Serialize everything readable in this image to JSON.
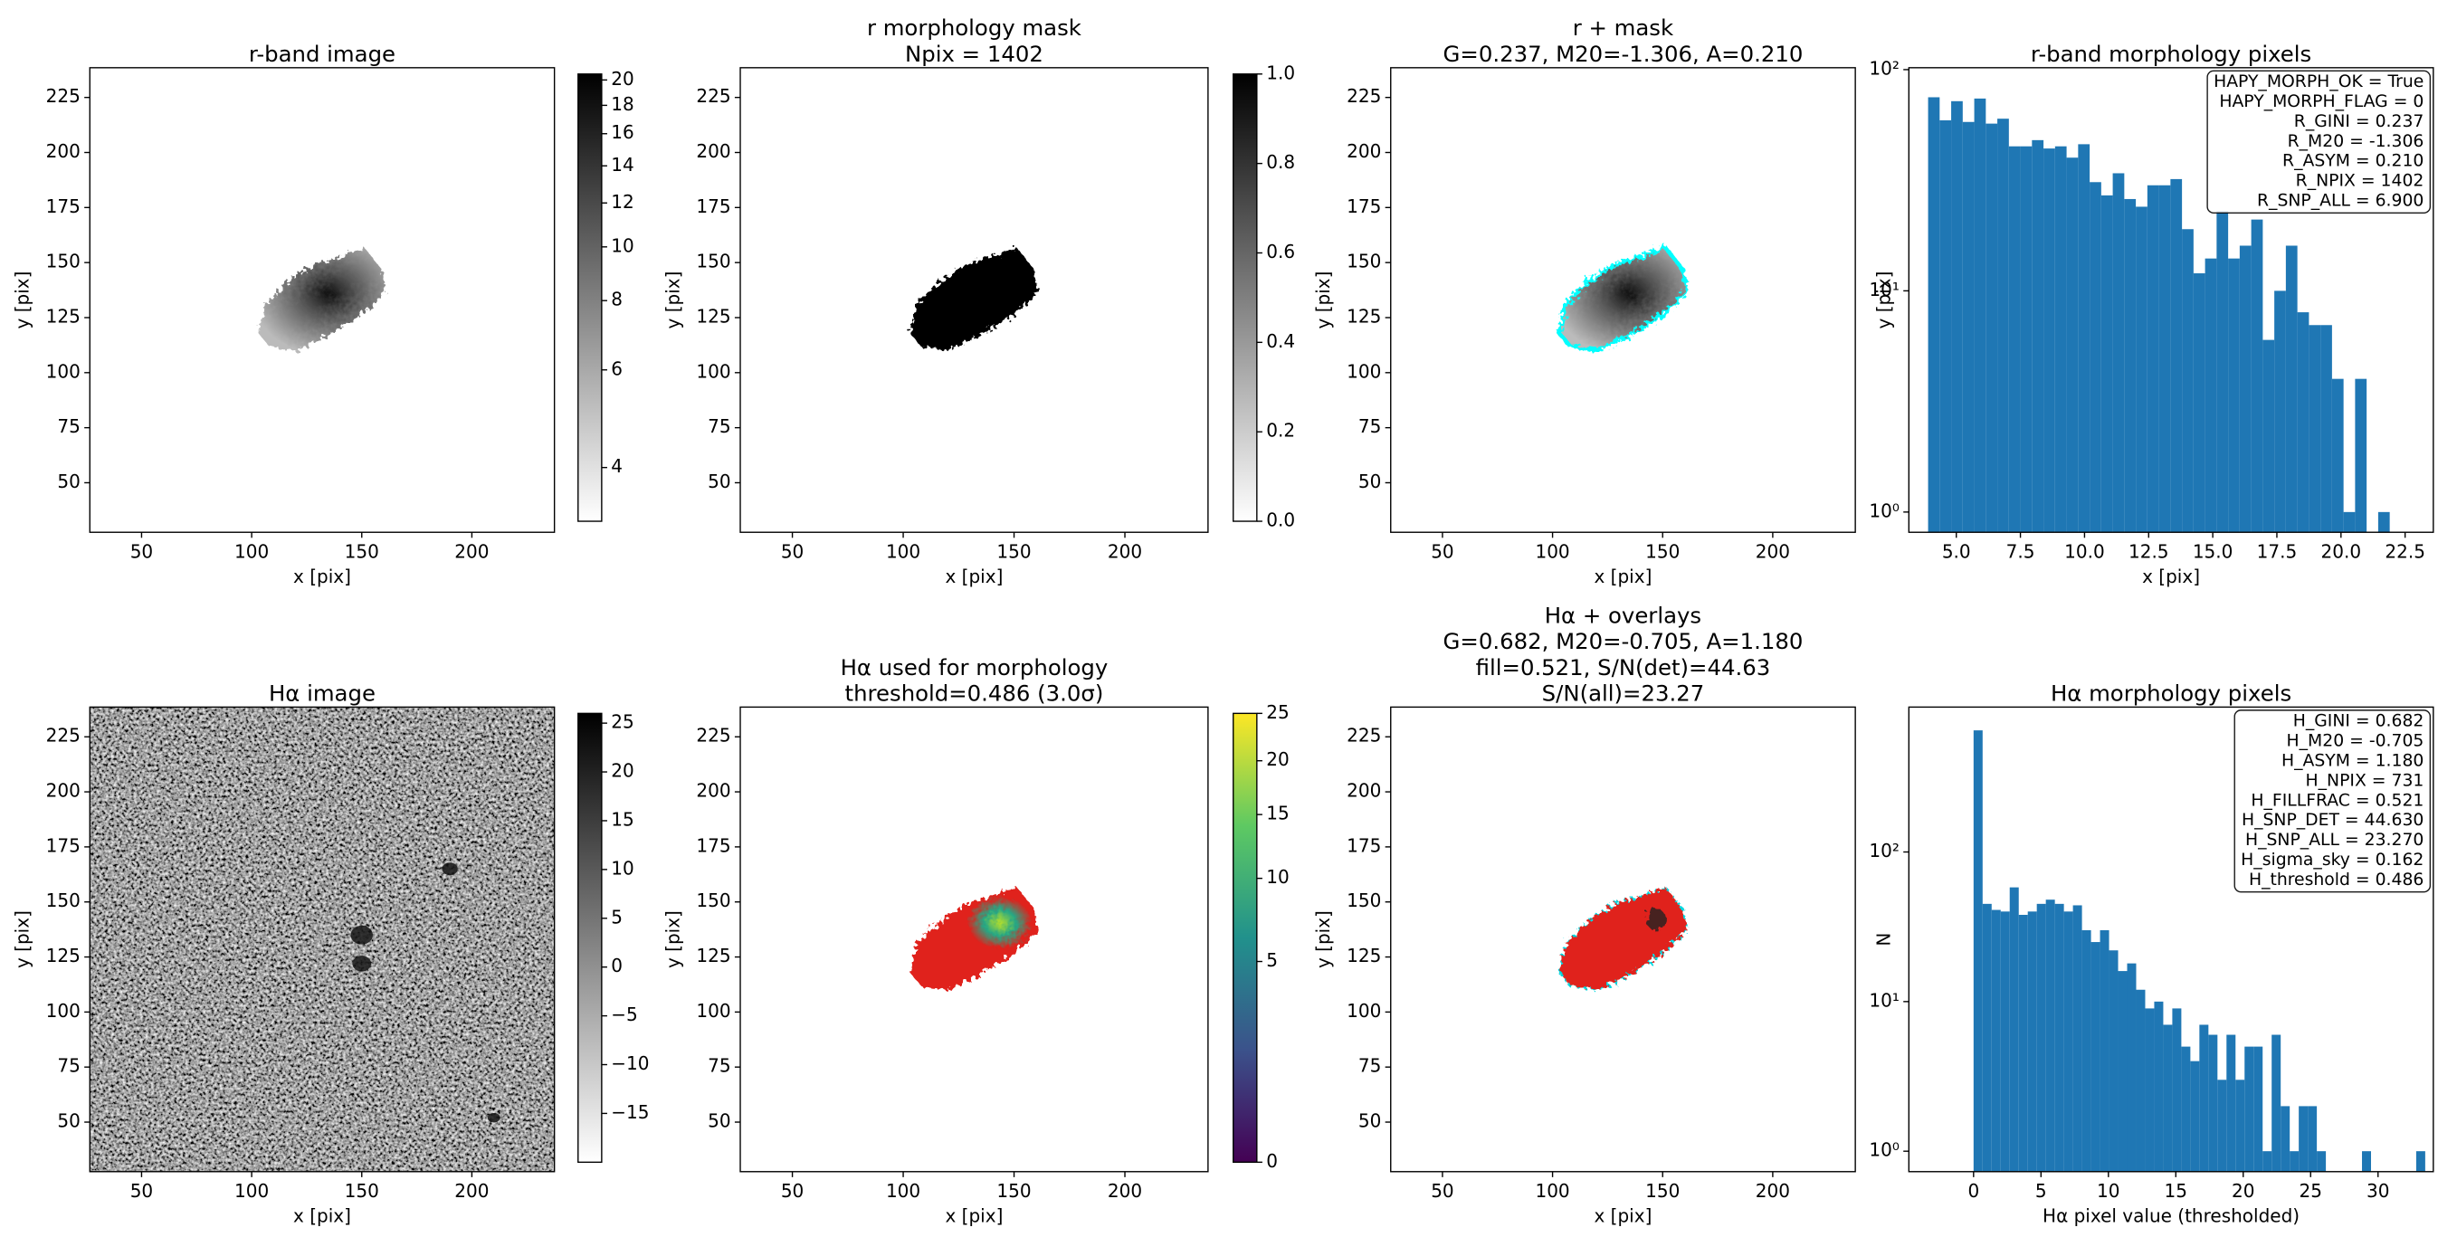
{
  "chart_data": [
    {
      "type": "image",
      "title": [
        "r-band image"
      ],
      "xlabel": "x [pix]",
      "ylabel": "y [pix]",
      "xlim": [
        26.5,
        237.5
      ],
      "ylim": [
        27.5,
        238.5
      ],
      "xticks": [
        50,
        100,
        150,
        200
      ],
      "yticks": [
        50,
        75,
        100,
        125,
        150,
        175,
        200,
        225
      ],
      "cmap": "gray_r",
      "colorbar": {
        "scale": "log",
        "clim": [
          3.2,
          20.5
        ],
        "ticks": [
          4,
          6,
          8,
          10,
          12,
          14,
          16,
          18,
          20
        ]
      }
    },
    {
      "type": "image",
      "title": [
        "r morphology mask",
        "Npix = 1402"
      ],
      "xlabel": "x [pix]",
      "ylabel": "y [pix]",
      "xlim": [
        26.5,
        237.5
      ],
      "ylim": [
        27.5,
        238.5
      ],
      "xticks": [
        50,
        100,
        150,
        200
      ],
      "yticks": [
        50,
        75,
        100,
        125,
        150,
        175,
        200,
        225
      ],
      "cmap": "gray_r",
      "colorbar": {
        "scale": "linear",
        "clim": [
          0,
          1
        ],
        "ticks": [
          {
            "value": 0,
            "label": "0.0"
          },
          0.2,
          0.4,
          0.6,
          0.8,
          {
            "value": 1,
            "label": "1.0"
          }
        ]
      }
    },
    {
      "type": "image",
      "title": [
        "r + mask",
        "G=0.237, M20=-1.306, A=0.210"
      ],
      "xlabel": "x [pix]",
      "ylabel": "y [pix]",
      "xlim": [
        26.5,
        237.5
      ],
      "ylim": [
        27.5,
        238.5
      ],
      "xticks": [
        50,
        100,
        150,
        200
      ],
      "yticks": [
        50,
        75,
        100,
        125,
        150,
        175,
        200,
        225
      ],
      "cmap": "gray_r"
    },
    {
      "type": "histogram",
      "title": [
        "r-band morphology pixels"
      ],
      "xlabel": "x [pix]",
      "ylabel": "y [pix]",
      "color": "#1f77b4",
      "log": true,
      "xlim": [
        3.15,
        23.6
      ],
      "ylim": [
        0.81,
        102
      ],
      "xticks": [
        {
          "value": 5,
          "label": "5.0"
        },
        7.5,
        {
          "value": 10,
          "label": "10.0"
        },
        12.5,
        {
          "value": 15,
          "label": "15.0"
        },
        17.5,
        {
          "value": 20,
          "label": "20.0"
        },
        22.5
      ],
      "yticks": [
        {
          "value": 1,
          "label": "10⁰"
        },
        {
          "value": 10,
          "label": "10¹"
        },
        {
          "value": 100,
          "label": "10²"
        }
      ],
      "bins": [
        3.9,
        4.35,
        4.8,
        5.25,
        5.7,
        6.15,
        6.6,
        7.05,
        7.5,
        7.95,
        8.4,
        8.85,
        9.3,
        9.75,
        10.2,
        10.65,
        11.1,
        11.55,
        12.0,
        12.45,
        12.9,
        13.35,
        13.8,
        14.25,
        14.7,
        15.15,
        15.6,
        16.05,
        16.5,
        16.95,
        17.4,
        17.85,
        18.3,
        18.75,
        19.2,
        19.65,
        20.1,
        20.55,
        21.0,
        21.45,
        21.9
      ],
      "values": [
        75,
        59,
        72,
        58,
        74,
        57,
        60,
        45,
        45,
        48,
        44,
        45,
        40,
        46,
        31,
        27,
        34,
        26,
        24,
        30,
        30,
        32,
        19,
        12,
        14,
        23,
        14,
        16,
        21,
        6,
        10,
        16,
        8,
        7,
        7,
        4,
        1,
        4,
        0,
        1
      ],
      "annotation": [
        "HAPY_MORPH_OK = True",
        "HAPY_MORPH_FLAG = 0",
        "R_GINI = 0.237",
        "R_M20 = -1.306",
        "R_ASYM = 0.210",
        "R_NPIX = 1402",
        "R_SNP_ALL = 6.900"
      ]
    },
    {
      "type": "image",
      "title": [
        "Hα image"
      ],
      "xlabel": "x [pix]",
      "ylabel": "y [pix]",
      "xlim": [
        26.5,
        237.5
      ],
      "ylim": [
        27.5,
        238.5
      ],
      "xticks": [
        50,
        100,
        150,
        200
      ],
      "yticks": [
        50,
        75,
        100,
        125,
        150,
        175,
        200,
        225
      ],
      "cmap": "gray_r",
      "colorbar": {
        "scale": "linear",
        "clim": [
          -20,
          26
        ],
        "ticks": [
          25,
          20,
          15,
          10,
          5,
          0,
          {
            "value": -5,
            "label": "−5"
          },
          {
            "value": -10,
            "label": "−10"
          },
          {
            "value": -15,
            "label": "−15"
          }
        ]
      }
    },
    {
      "type": "image",
      "title": [
        "Hα used for morphology",
        "threshold=0.486 (3.0σ)"
      ],
      "xlabel": "x [pix]",
      "ylabel": "y [pix]",
      "xlim": [
        26.5,
        237.5
      ],
      "ylim": [
        27.5,
        238.5
      ],
      "xticks": [
        50,
        100,
        150,
        200
      ],
      "yticks": [
        50,
        75,
        100,
        125,
        150,
        175,
        200,
        225
      ],
      "cmap": "viridis",
      "colorbar": {
        "scale": "sqrt",
        "clim": [
          0,
          25
        ],
        "ticks": [
          0,
          5,
          10,
          15,
          20,
          25
        ]
      }
    },
    {
      "type": "image",
      "title": [
        "Hα + overlays",
        "G=0.682, M20=-0.705, A=1.180",
        "fill=0.521, S/N(det)=44.63",
        "S/N(all)=23.27"
      ],
      "xlabel": "x [pix]",
      "ylabel": "y [pix]",
      "xlim": [
        26.5,
        237.5
      ],
      "ylim": [
        27.5,
        238.5
      ],
      "xticks": [
        50,
        100,
        150,
        200
      ],
      "yticks": [
        50,
        75,
        100,
        125,
        150,
        175,
        200,
        225
      ],
      "cmap": "gray_r"
    },
    {
      "type": "histogram",
      "title": [
        "Hα morphology pixels"
      ],
      "xlabel": "Hα pixel value (thresholded)",
      "ylabel": "N",
      "color": "#1f77b4",
      "log": true,
      "xlim": [
        -4.8,
        34.1
      ],
      "ylim": [
        0.73,
        930
      ],
      "xticks": [
        0,
        5,
        10,
        15,
        20,
        25,
        30
      ],
      "yticks": [
        {
          "value": 1,
          "label": "10⁰"
        },
        {
          "value": 10,
          "label": "10¹"
        },
        {
          "value": 100,
          "label": "10²"
        }
      ],
      "bins": [
        0,
        0.67,
        1.34,
        2.01,
        2.68,
        3.35,
        4.02,
        4.69,
        5.36,
        6.03,
        6.7,
        7.37,
        8.04,
        8.71,
        9.38,
        10.05,
        10.72,
        11.39,
        12.06,
        12.73,
        13.4,
        14.07,
        14.74,
        15.41,
        16.08,
        16.75,
        17.42,
        18.09,
        18.76,
        19.43,
        20.1,
        20.77,
        21.44,
        22.11,
        22.78,
        23.45,
        24.12,
        24.79,
        25.46,
        26.13,
        26.8,
        27.47,
        28.14,
        28.81,
        29.48,
        30.15,
        30.82,
        31.49,
        32.16,
        32.83,
        33.5
      ],
      "values": [
        650,
        45,
        41,
        40,
        58,
        38,
        40,
        45,
        48,
        45,
        40,
        44,
        30,
        25,
        30,
        22,
        16,
        18,
        12,
        9,
        10,
        7,
        9,
        5,
        4,
        7,
        6,
        3,
        6,
        3,
        5,
        5,
        1,
        6,
        2,
        1,
        2,
        2,
        1,
        0,
        0,
        0,
        0,
        1,
        0,
        0,
        0,
        0,
        0,
        1
      ],
      "annotation": [
        "H_GINI = 0.682",
        "H_M20 = -0.705",
        "H_ASYM = 1.180",
        "H_NPIX = 731",
        "H_FILLFRAC = 0.521",
        "H_SNP_DET = 44.630",
        "H_SNP_ALL = 23.270",
        "H_sigma_sky = 0.162",
        "H_threshold = 0.486"
      ]
    }
  ]
}
